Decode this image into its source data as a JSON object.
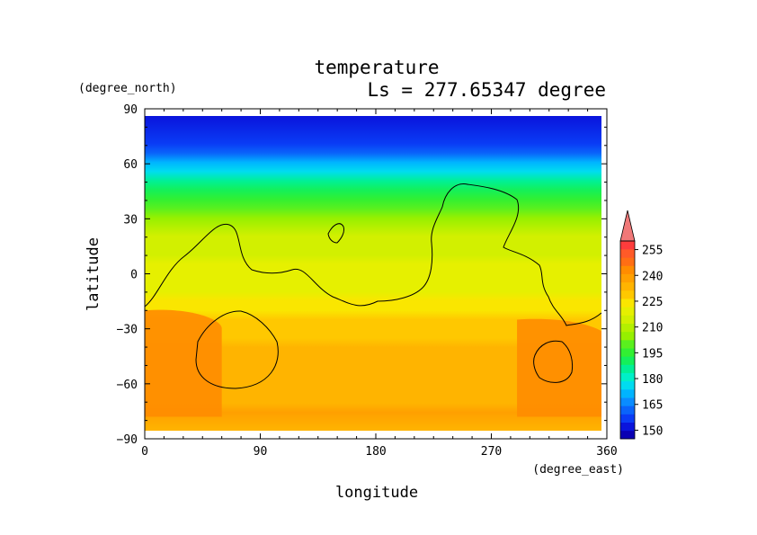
{
  "chart_data": {
    "type": "heatmap",
    "title": "temperature",
    "subtitle": "Ls = 277.65347 degree",
    "xlabel": "longitude",
    "ylabel": "latitude",
    "x_units": "(degree_east)",
    "y_units": "(degree_north)",
    "xlim": [
      0,
      360
    ],
    "ylim": [
      -90,
      90
    ],
    "x_ticks": [
      "0",
      "90",
      "180",
      "270",
      "360"
    ],
    "y_ticks": [
      "90",
      "60",
      "30",
      "0",
      "−30",
      "−60",
      "−90"
    ],
    "x_tick_values": [
      0,
      90,
      180,
      270,
      360
    ],
    "y_tick_values": [
      90,
      60,
      30,
      0,
      -30,
      -60,
      -90
    ],
    "data_lat_range": [
      -85,
      85
    ],
    "colorbar": {
      "labels": [
        "255",
        "240",
        "225",
        "210",
        "195",
        "180",
        "165",
        "150"
      ],
      "label_values": [
        255,
        240,
        225,
        210,
        195,
        180,
        165,
        150
      ],
      "levels": [
        140,
        145,
        150,
        155,
        160,
        165,
        170,
        175,
        180,
        185,
        190,
        195,
        200,
        205,
        210,
        215,
        220,
        225,
        230,
        235,
        240,
        245,
        250,
        255,
        260
      ],
      "colors": [
        "#0a00b4",
        "#0a14dc",
        "#0a3cf5",
        "#0a64fa",
        "#0a8cff",
        "#00b4ff",
        "#00dcf0",
        "#00f0c8",
        "#00f096",
        "#14f05a",
        "#32f032",
        "#5af01e",
        "#96f000",
        "#b4f000",
        "#d2f000",
        "#e6f000",
        "#fae600",
        "#ffc800",
        "#ffb400",
        "#ffa000",
        "#ff8c00",
        "#ff6e14",
        "#ff5a28",
        "#ff3c3c",
        "#f07878"
      ]
    },
    "zonal_profile": {
      "lat": [
        85,
        70,
        65,
        60,
        55,
        50,
        45,
        40,
        35,
        30,
        25,
        20,
        15,
        10,
        5,
        0,
        -5,
        -10,
        -15,
        -20,
        -25,
        -30,
        -35,
        -40,
        -50,
        -60,
        -70,
        -75,
        -85
      ],
      "temperature": [
        147,
        150,
        158,
        166,
        174,
        180,
        186,
        193,
        198,
        203,
        208,
        211,
        213,
        214,
        215,
        216,
        217,
        219,
        221,
        224,
        226,
        228,
        229,
        230,
        231,
        231,
        232,
        235,
        231
      ]
    },
    "warm_regions": [
      {
        "lon_range": [
          0,
          60
        ],
        "lat_range": [
          -78,
          -20
        ],
        "temperature": 240
      },
      {
        "lon_range": [
          290,
          360
        ],
        "lat_range": [
          -78,
          -25
        ],
        "temperature": 240
      }
    ],
    "contour_level": 210
  }
}
